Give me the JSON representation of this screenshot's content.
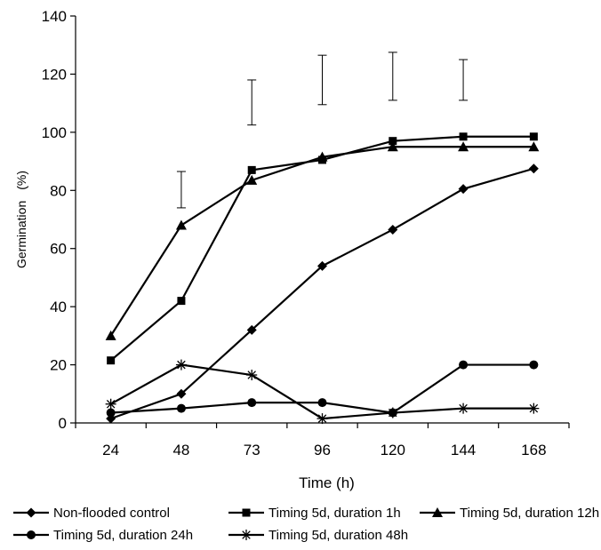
{
  "chart_data": {
    "type": "line",
    "title": "",
    "xlabel": "Time (h)",
    "ylabel_parts": [
      "Germination",
      "(%)"
    ],
    "categories": [
      "24",
      "48",
      "73",
      "96",
      "120",
      "144",
      "168"
    ],
    "y_ticks": [
      0,
      20,
      40,
      60,
      80,
      100,
      120,
      140
    ],
    "ylim": [
      0,
      140
    ],
    "grid": false,
    "legend_position": "bottom",
    "series": [
      {
        "name": "Non-flooded control",
        "marker": "diamond",
        "values": [
          1.5,
          10,
          32,
          54,
          66.5,
          80.5,
          87.5
        ]
      },
      {
        "name": "Timing 5d, duration 1h",
        "marker": "square",
        "values": [
          21.5,
          42,
          87,
          90.5,
          97,
          98.5,
          98.5
        ]
      },
      {
        "name": "Timing 5d, duration 12h",
        "marker": "triangle",
        "values": [
          30,
          68,
          83.5,
          91.5,
          95,
          95,
          95
        ]
      },
      {
        "name": "Timing 5d, duration 24h",
        "marker": "circle",
        "values": [
          3.5,
          5,
          7,
          7,
          3.5,
          20,
          20
        ]
      },
      {
        "name": "Timing 5d, duration 48h",
        "marker": "star",
        "values": [
          6.5,
          20,
          16.5,
          1.5,
          3.5,
          5,
          5
        ]
      }
    ],
    "error_bars": [
      {
        "category": "48",
        "low": 74,
        "high": 86.5
      },
      {
        "category": "73",
        "low": 102.5,
        "high": 118
      },
      {
        "category": "96",
        "low": 109.5,
        "high": 126.5
      },
      {
        "category": "120",
        "low": 111,
        "high": 127.5
      },
      {
        "category": "144",
        "low": 111,
        "high": 125
      }
    ],
    "colors": {
      "line": "#000000",
      "background": "#ffffff"
    }
  }
}
